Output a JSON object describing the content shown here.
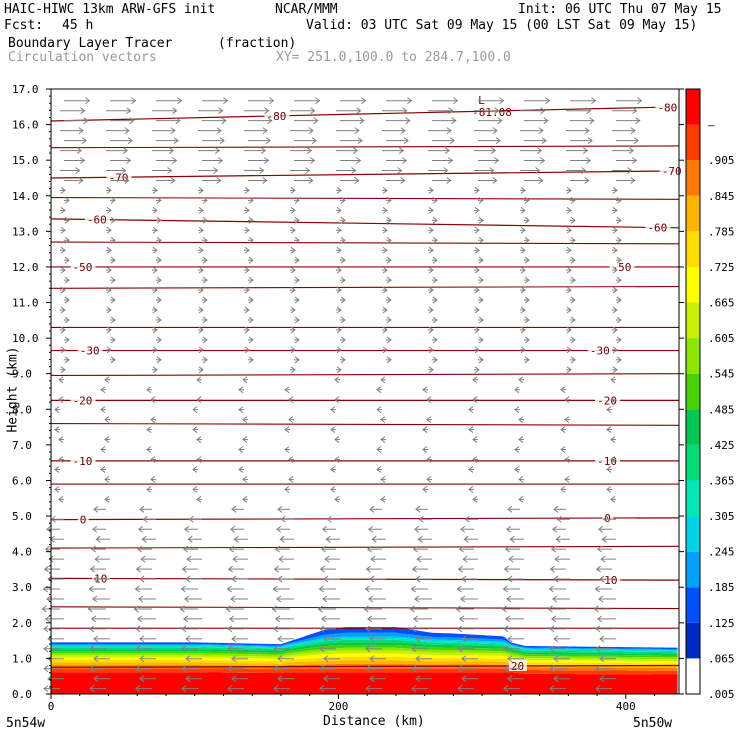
{
  "header": {
    "model": "HAIC-HIWC 13km ARW-GFS init",
    "org": "NCAR/MMM",
    "init": "Init: 06 UTC Thu 07 May 15",
    "fcst_label": "Fcst:",
    "fcst_value": "45 h",
    "valid": "Valid: 03 UTC Sat 09 May 15 (00 LST Sat 09 May 15)",
    "field": "Boundary Layer Tracer",
    "field_units": "(fraction)",
    "overlay": "Circulation vectors",
    "xsection": "XY= 251.0,100.0 to 284.7,100.0"
  },
  "axes": {
    "ylabel": "Height (km)",
    "xlabel": "Distance (km)",
    "left_endpoint": "5n54w",
    "right_endpoint": "5n50w"
  },
  "colorbar": {
    "labels": [
      ".005",
      ".065",
      ".125",
      ".185",
      ".245",
      ".305",
      ".365",
      ".425",
      ".485",
      ".545",
      ".605",
      ".665",
      ".725",
      ".785",
      ".845",
      ".905",
      "–"
    ],
    "colors": [
      "#ffffff",
      "#0028c8",
      "#0050ff",
      "#00a0ff",
      "#00d2e6",
      "#00e6b4",
      "#00dc78",
      "#00c850",
      "#46d200",
      "#8ce600",
      "#c8f000",
      "#ffff00",
      "#ffdc00",
      "#ffb400",
      "#ff7800",
      "#ff3c00",
      "#ff0000"
    ]
  },
  "contour_labels": {
    "min_label": "L",
    "min_value": "-81.08"
  },
  "colors": {
    "contour": "#8b0000",
    "vector": "#808080"
  },
  "chart_data": {
    "type": "cross-section",
    "x_range_km": [
      0,
      437
    ],
    "y_range_km": [
      0,
      17
    ],
    "xticks": [
      0,
      200,
      400
    ],
    "xtick_labels": [
      "0",
      "200",
      "400"
    ],
    "yticks": [
      0,
      1,
      2,
      3,
      4,
      5,
      6,
      7,
      8,
      9,
      10,
      11,
      12,
      13,
      14,
      15,
      16,
      17
    ],
    "ytick_labels": [
      "0.0",
      "1.0",
      "2.0",
      "3.0",
      "4.0",
      "5.0",
      "6.0",
      "7.0",
      "8.0",
      "9.0",
      "10.0",
      "11.0",
      "12.0",
      "13.0",
      "14.0",
      "15.0",
      "16.0",
      "17.0"
    ],
    "tracer_top_km": {
      "x": [
        0,
        100,
        160,
        175,
        190,
        205,
        240,
        265,
        280,
        315,
        320,
        330,
        437
      ],
      "y": [
        1.45,
        1.45,
        1.4,
        1.6,
        1.8,
        1.88,
        1.88,
        1.72,
        1.7,
        1.62,
        1.45,
        1.35,
        1.3
      ]
    },
    "temperature_contours_C": [
      {
        "value": 20,
        "label": "20",
        "y_km": [
          0.75,
          0.8
        ],
        "x_label": 320
      },
      {
        "value": 10,
        "label": "10",
        "y_km": [
          3.25,
          3.2
        ],
        "x_left": 30,
        "x_right": 385
      },
      {
        "value": 0,
        "label": "0",
        "y_km": [
          4.9,
          4.95
        ],
        "x_left": 20,
        "x_right": 385
      },
      {
        "value": -10,
        "label": "-10",
        "y_km": [
          6.55,
          6.55
        ],
        "x_left": 15,
        "x_right": 380
      },
      {
        "value": -20,
        "label": "-20",
        "y_km": [
          8.25,
          8.25
        ],
        "x_left": 15,
        "x_right": 380
      },
      {
        "value": -30,
        "label": "-30",
        "y_km": [
          9.65,
          9.65
        ],
        "x_left": 20,
        "x_right": 375
      },
      {
        "value": -50,
        "label": "-50",
        "y_km": [
          12.0,
          12.0
        ],
        "x_left": 15,
        "x_right": 390
      },
      {
        "value": -60,
        "label": "-60",
        "y_km": [
          13.35,
          13.1
        ],
        "x_left": 25,
        "x_right": 415
      },
      {
        "value": -70,
        "label": "-70",
        "y_km": [
          14.5,
          14.7
        ],
        "x_left": 40,
        "x_right": 425
      },
      {
        "value": -80,
        "label": "-80",
        "y_km": [
          16.1,
          16.5
        ],
        "x_left": 150,
        "x_right": 422
      }
    ],
    "min_marker": {
      "x_km": 300,
      "y_km": 16.35
    }
  }
}
